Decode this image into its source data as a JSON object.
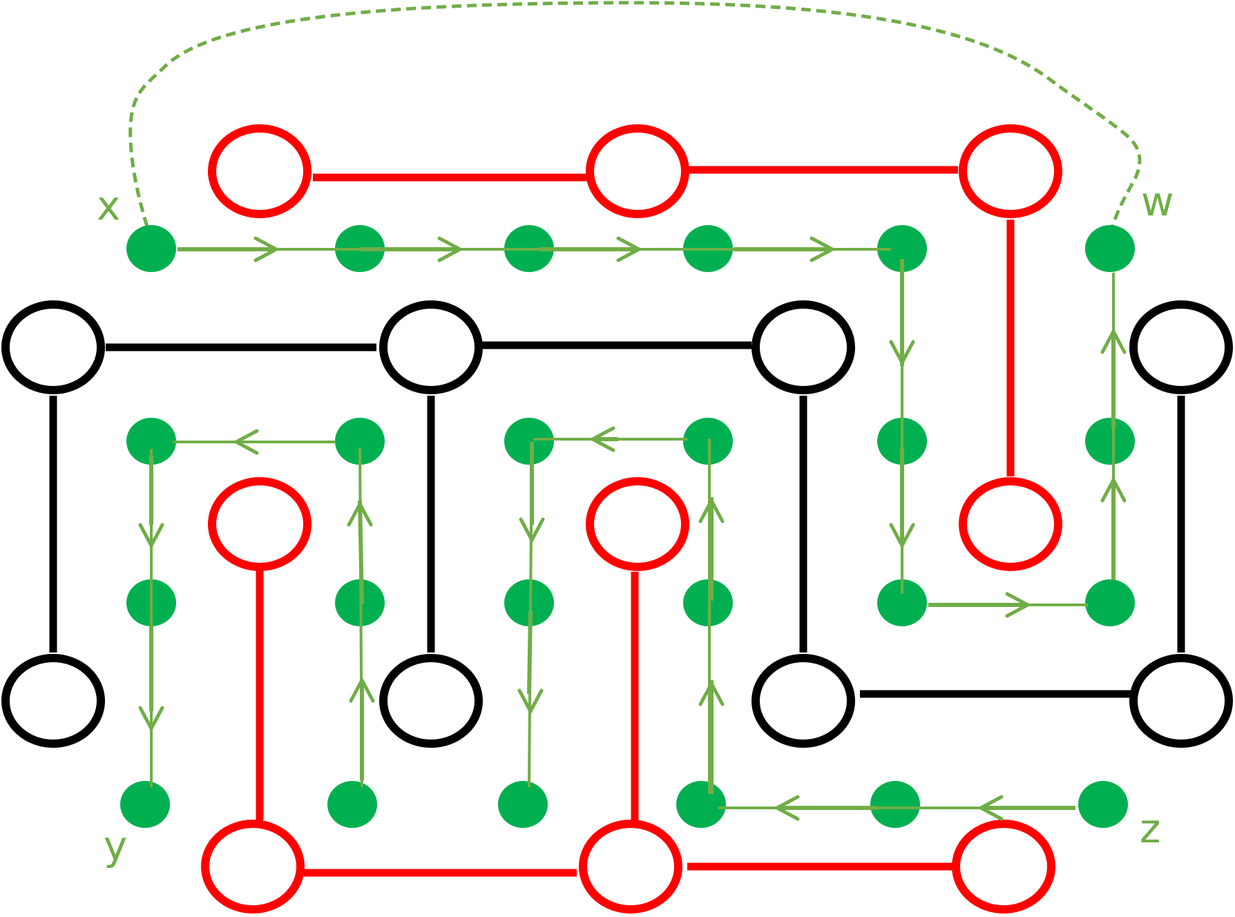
{
  "labels": {
    "x": "x",
    "y": "y",
    "z": "z",
    "w": "w"
  },
  "colors": {
    "red_graph": "#ff0000",
    "black_graph": "#000000",
    "dot": "#00b050",
    "path": "#70ad47"
  },
  "nodes": {
    "red": [
      "r1",
      "r2",
      "r3",
      "r4",
      "r5",
      "r6",
      "r7",
      "r8",
      "r9"
    ],
    "black": [
      "b1",
      "b2",
      "b3",
      "b4",
      "b5",
      "b6",
      "b7",
      "b8"
    ]
  },
  "edges": {
    "red": [
      [
        "r1",
        "r2"
      ],
      [
        "r2",
        "r3"
      ],
      [
        "r3",
        "r6"
      ],
      [
        "r4",
        "r7"
      ],
      [
        "r5",
        "r8"
      ],
      [
        "r7",
        "r8"
      ],
      [
        "r8",
        "r9"
      ]
    ],
    "black": [
      [
        "b1",
        "b2"
      ],
      [
        "b2",
        "b3"
      ],
      [
        "b1",
        "b5"
      ],
      [
        "b2",
        "b6"
      ],
      [
        "b3",
        "b7"
      ],
      [
        "b4",
        "b8"
      ],
      [
        "b7",
        "b8"
      ]
    ]
  },
  "path_sequence": [
    "x",
    "d2",
    "d3",
    "d4",
    "d5",
    "d6",
    "d7",
    "d8",
    "d9",
    "d10",
    "d11",
    "z",
    "d12",
    "d13",
    "d14",
    "d15",
    "d16",
    "d17",
    "d18",
    "d19",
    "d20",
    "d21",
    "d22",
    "y"
  ],
  "closing_connection": [
    "x",
    "w"
  ]
}
